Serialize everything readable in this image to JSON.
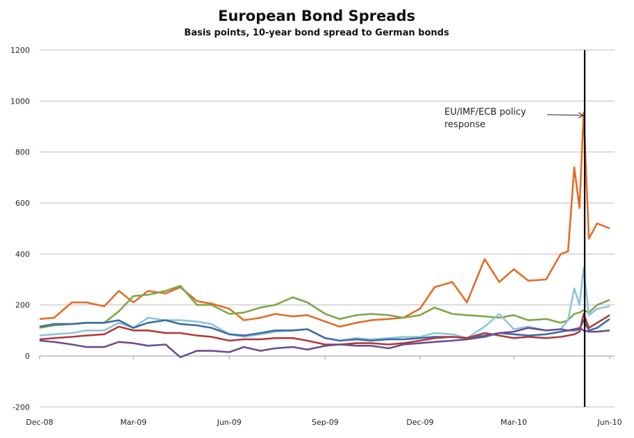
{
  "chart_data": {
    "type": "line",
    "title": "European Bond Spreads",
    "subtitle": "Basis points, 10-year bond spread to German bonds",
    "xlabel": "",
    "ylabel": "",
    "ylim": [
      -200,
      1200
    ],
    "yticks": [
      "-200",
      "0",
      "200",
      "400",
      "600",
      "800",
      "1000",
      "1200"
    ],
    "xticks": [
      {
        "date": "2008-12-01",
        "label": "Dec-08"
      },
      {
        "date": "2009-03-01",
        "label": "Mar-09"
      },
      {
        "date": "2009-06-01",
        "label": "Jun-09"
      },
      {
        "date": "2009-09-01",
        "label": "Sep-09"
      },
      {
        "date": "2009-12-01",
        "label": "Dec-09"
      },
      {
        "date": "2010-03-01",
        "label": "Mar-10"
      },
      {
        "date": "2010-06-01",
        "label": "Jun-10"
      }
    ],
    "grid": true,
    "legend": "none",
    "x": [
      "2008-12-01",
      "2008-12-15",
      "2009-01-01",
      "2009-01-15",
      "2009-02-01",
      "2009-02-15",
      "2009-03-01",
      "2009-03-15",
      "2009-04-01",
      "2009-04-15",
      "2009-05-01",
      "2009-05-15",
      "2009-06-01",
      "2009-06-15",
      "2009-07-01",
      "2009-07-15",
      "2009-08-01",
      "2009-08-15",
      "2009-09-01",
      "2009-09-15",
      "2009-10-01",
      "2009-10-15",
      "2009-11-01",
      "2009-11-15",
      "2009-12-01",
      "2009-12-15",
      "2010-01-01",
      "2010-01-15",
      "2010-02-01",
      "2010-02-15",
      "2010-03-01",
      "2010-03-15",
      "2010-04-01",
      "2010-04-15",
      "2010-04-22",
      "2010-04-28",
      "2010-05-03",
      "2010-05-07",
      "2010-05-12",
      "2010-05-20",
      "2010-06-01"
    ],
    "series": [
      {
        "color": "#e36c25",
        "values": [
          145,
          150,
          210,
          210,
          195,
          255,
          210,
          255,
          245,
          270,
          215,
          205,
          185,
          140,
          150,
          165,
          155,
          160,
          135,
          115,
          130,
          140,
          145,
          150,
          185,
          270,
          290,
          210,
          380,
          290,
          340,
          295,
          300,
          400,
          410,
          740,
          580,
          955,
          460,
          520,
          500
        ]
      },
      {
        "color": "#7fa54a",
        "values": [
          110,
          120,
          125,
          130,
          130,
          175,
          235,
          240,
          255,
          275,
          200,
          200,
          165,
          170,
          190,
          200,
          230,
          210,
          165,
          145,
          160,
          165,
          160,
          150,
          160,
          190,
          165,
          160,
          155,
          150,
          160,
          140,
          145,
          130,
          140,
          165,
          170,
          180,
          170,
          200,
          220
        ]
      },
      {
        "color": "#8cc5d6",
        "values": [
          80,
          85,
          90,
          100,
          100,
          130,
          110,
          150,
          140,
          140,
          135,
          125,
          85,
          75,
          85,
          95,
          100,
          105,
          70,
          60,
          70,
          65,
          70,
          75,
          75,
          90,
          85,
          70,
          115,
          165,
          105,
          115,
          100,
          105,
          140,
          265,
          200,
          345,
          160,
          185,
          195
        ]
      },
      {
        "color": "#3b6ba5",
        "values": [
          115,
          125,
          125,
          130,
          130,
          140,
          110,
          130,
          140,
          125,
          120,
          110,
          85,
          80,
          90,
          100,
          100,
          105,
          70,
          60,
          65,
          60,
          65,
          65,
          70,
          75,
          75,
          70,
          80,
          90,
          85,
          80,
          85,
          95,
          100,
          100,
          105,
          140,
          100,
          110,
          145
        ]
      },
      {
        "color": "#b03a3a",
        "values": [
          65,
          70,
          75,
          80,
          85,
          115,
          100,
          100,
          90,
          90,
          80,
          75,
          60,
          65,
          65,
          70,
          70,
          60,
          45,
          45,
          50,
          50,
          45,
          50,
          60,
          70,
          75,
          70,
          90,
          80,
          70,
          75,
          70,
          75,
          80,
          85,
          95,
          165,
          110,
          130,
          160
        ]
      },
      {
        "color": "#6b4e8f",
        "values": [
          60,
          55,
          45,
          35,
          35,
          55,
          50,
          40,
          45,
          -5,
          20,
          20,
          15,
          35,
          20,
          30,
          35,
          25,
          40,
          45,
          40,
          40,
          30,
          45,
          50,
          55,
          60,
          65,
          75,
          90,
          95,
          110,
          100,
          105,
          100,
          105,
          110,
          100,
          95,
          95,
          100
        ]
      }
    ],
    "annotations": [
      {
        "text_line1": "EU/IMF/ECB policy",
        "text_line2": "response",
        "date": "2010-05-08",
        "value": 955
      }
    ]
  }
}
